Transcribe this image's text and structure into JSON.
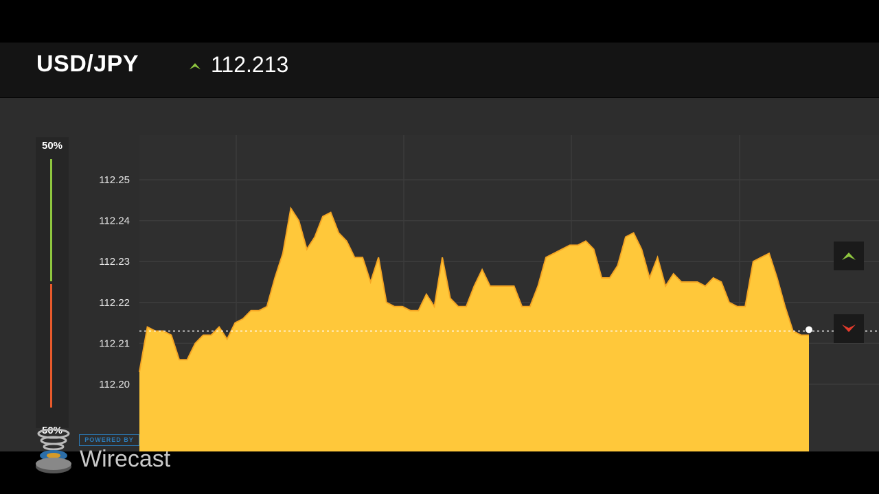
{
  "header": {
    "pair": "USD/JPY",
    "price": "112.213",
    "trend_icon": "up-arrow-icon"
  },
  "sentiment": {
    "up_percent": "50%",
    "down_percent": "50%",
    "up_fraction": 0.5,
    "down_fraction": 0.5,
    "up_color": "#8ec63f",
    "down_color": "#e85a2c"
  },
  "controls": {
    "call_icon": "up-arrow-icon",
    "put_icon": "down-arrow-icon",
    "call_color": "#8ec63f",
    "put_color": "#e53b2c"
  },
  "chart_data": {
    "type": "area",
    "color": "#ffc83a",
    "current_price": 112.213,
    "ylim": [
      112.19,
      112.26
    ],
    "yticks": [
      "112.25",
      "112.24",
      "112.23",
      "112.22",
      "112.21",
      "112.20"
    ],
    "grid": true,
    "values": [
      112.203,
      112.214,
      112.213,
      112.213,
      112.212,
      112.206,
      112.206,
      112.21,
      112.212,
      112.212,
      112.214,
      112.211,
      112.215,
      112.216,
      112.218,
      112.218,
      112.219,
      112.226,
      112.232,
      112.243,
      112.24,
      112.233,
      112.236,
      112.241,
      112.242,
      112.237,
      112.235,
      112.231,
      112.231,
      112.225,
      112.231,
      112.22,
      112.219,
      112.219,
      112.218,
      112.218,
      112.222,
      112.219,
      112.231,
      112.221,
      112.219,
      112.219,
      112.224,
      112.228,
      112.224,
      112.224,
      112.224,
      112.224,
      112.219,
      112.219,
      112.224,
      112.231,
      112.232,
      112.233,
      112.234,
      112.234,
      112.235,
      112.233,
      112.226,
      112.226,
      112.229,
      112.236,
      112.237,
      112.233,
      112.226,
      112.231,
      112.224,
      112.227,
      112.225,
      112.225,
      112.225,
      112.224,
      112.226,
      112.225,
      112.22,
      112.219,
      112.219,
      112.23,
      112.231,
      112.232,
      112.226,
      112.219,
      112.213,
      112.212,
      112.212
    ]
  },
  "branding": {
    "powered_by": "POWERED BY",
    "name": "Wirecast"
  }
}
